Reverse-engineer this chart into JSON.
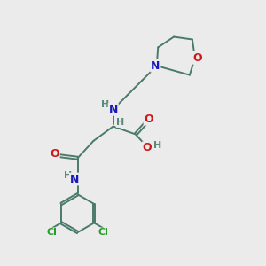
{
  "background_color": "#ebebeb",
  "atom_colors": {
    "C": "#4a7a6a",
    "H": "#5a8a7a",
    "N": "#1818bb",
    "O": "#cc1818",
    "Cl": "#2a9a2a",
    "bond": "#4a7a6a"
  },
  "figsize": [
    3.0,
    3.0
  ],
  "dpi": 100
}
